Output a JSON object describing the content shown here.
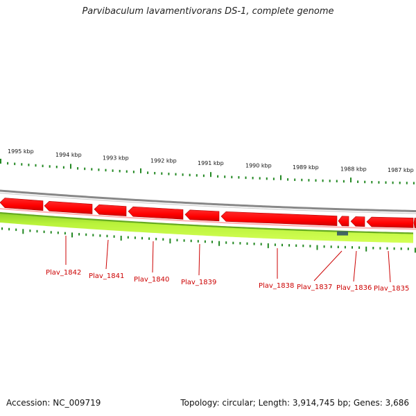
{
  "title": "Parvibaculum lavamentivorans DS-1, complete genome",
  "footer": {
    "accession": "Accession: NC_009719",
    "summary": "Topology: circular; Length: 3,914,745 bp; Genes: 3,686"
  },
  "colors": {
    "gene_fill": "#ff0000",
    "gene_edge": "#b00000",
    "backbone": "#888888",
    "inner_track": "#aaee33",
    "inner_track_edge": "#66aa22",
    "tick": "#228822",
    "label": "#cc0000",
    "highlight": "#335566"
  },
  "kbp_ticks": [
    "1995 kbp",
    "1994 kbp",
    "1993 kbp",
    "1992 kbp",
    "1991 kbp",
    "1990 kbp",
    "1989 kbp",
    "1988 kbp",
    "1987 kbp"
  ],
  "genes": [
    "Plav_1842",
    "Plav_1841",
    "Plav_1840",
    "Plav_1839",
    "Plav_1838",
    "Plav_1837",
    "Plav_1836",
    "Plav_1835"
  ]
}
